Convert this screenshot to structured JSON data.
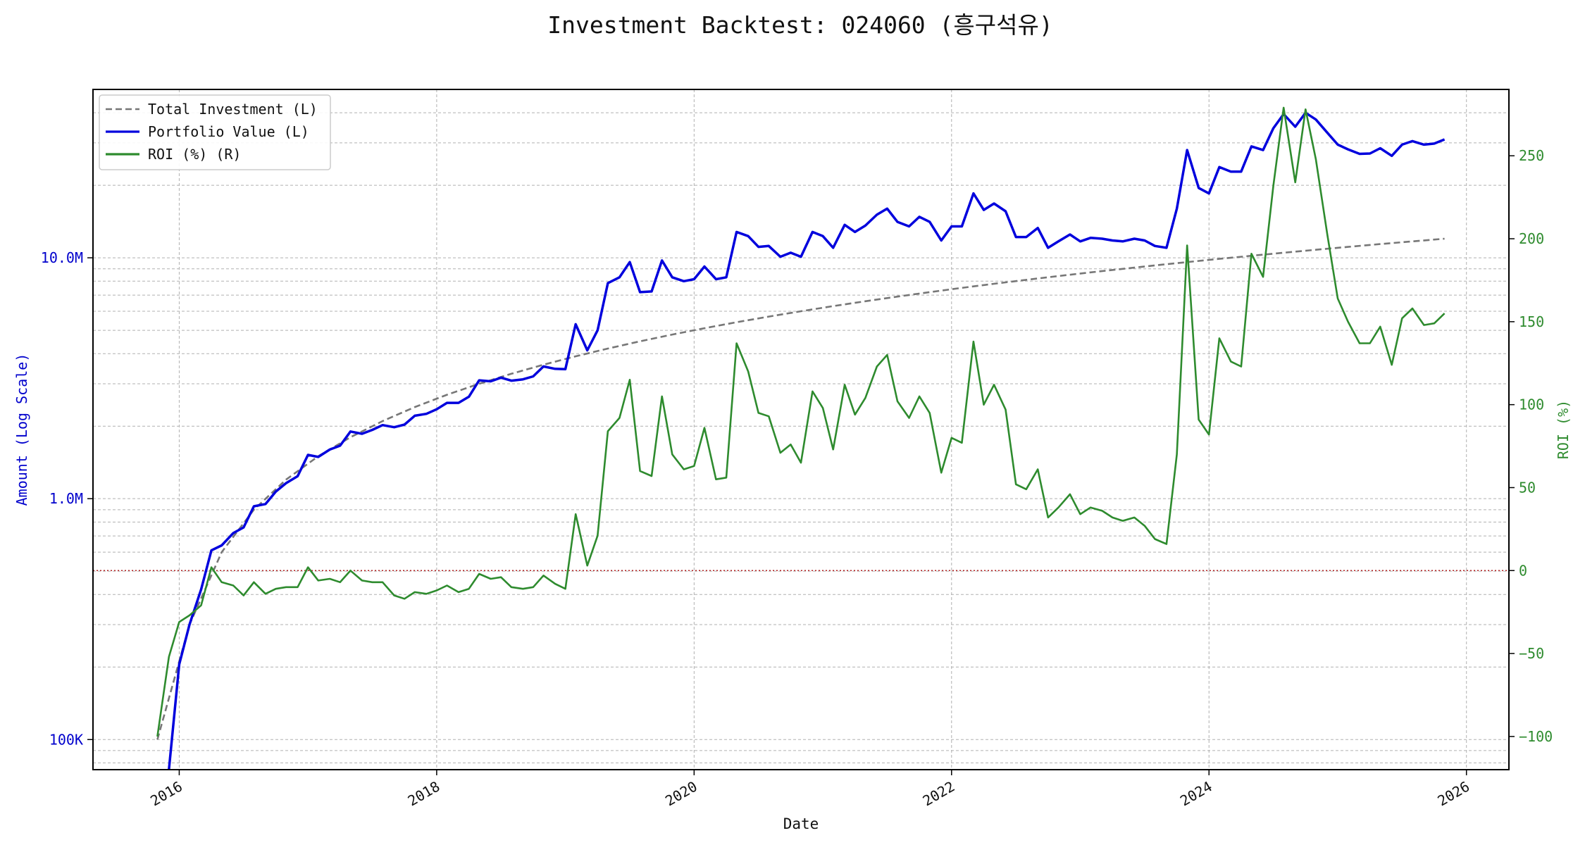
{
  "chart_data": {
    "type": "line",
    "title": "Investment Backtest: 024060 (흥구석유)",
    "xlabel": "Date",
    "ylabel_left": "Amount (Log Scale)",
    "ylabel_right": "ROI (%)",
    "x_ticks": [
      "2016",
      "2018",
      "2020",
      "2022",
      "2024",
      "2026"
    ],
    "x_range": [
      2015.33,
      2026.33
    ],
    "y_left_ticks": [
      {
        "value": 100000,
        "label": "100K"
      },
      {
        "value": 1000000,
        "label": "1.0M"
      },
      {
        "value": 10000000,
        "label": "10.0M"
      }
    ],
    "y_left_range": [
      75000,
      50000000
    ],
    "y_right_ticks": [
      -100,
      -50,
      0,
      50,
      100,
      150,
      200,
      250
    ],
    "y_right_range": [
      -120,
      290
    ],
    "grid": true,
    "legend_position": "top-left",
    "zero_line": {
      "axis": "right",
      "value": 0,
      "color": "#b22222"
    },
    "series": [
      {
        "name": "Total Investment (L)",
        "axis": "left",
        "style": "dashed",
        "color": "#777777",
        "x": [
          2015.83,
          2016.08,
          2016.33,
          2016.58,
          2016.83,
          2017.08,
          2017.33,
          2017.58,
          2017.83,
          2018.08,
          2018.33,
          2018.58,
          2018.83,
          2019.08,
          2019.33,
          2019.58,
          2019.83,
          2020.08,
          2020.33,
          2020.58,
          2020.83,
          2021.08,
          2021.33,
          2021.58,
          2021.83,
          2022.08,
          2022.33,
          2022.58,
          2022.83,
          2023.08,
          2023.33,
          2023.58,
          2023.83,
          2024.08,
          2024.33,
          2024.58,
          2024.83,
          2025.08,
          2025.33,
          2025.58,
          2025.83
        ],
        "values": [
          100000,
          300000,
          600000,
          900000,
          1200000,
          1500000,
          1800000,
          2100000,
          2400000,
          2700000,
          3000000,
          3300000,
          3600000,
          3900000,
          4200000,
          4500000,
          4800000,
          5100000,
          5400000,
          5700000,
          6000000,
          6300000,
          6600000,
          6900000,
          7200000,
          7500000,
          7800000,
          8100000,
          8400000,
          8700000,
          9000000,
          9300000,
          9600000,
          9900000,
          10200000,
          10500000,
          10800000,
          11100000,
          11400000,
          11700000,
          12000000
        ]
      },
      {
        "name": "Portfolio Value (L)",
        "axis": "left",
        "style": "solid",
        "color": "#0000dd",
        "x": [
          2015.92,
          2016.0,
          2016.08,
          2016.17,
          2016.25,
          2016.33,
          2016.42,
          2016.5,
          2016.58,
          2016.67,
          2016.75,
          2016.83,
          2016.92,
          2017.0,
          2017.08,
          2017.17,
          2017.25,
          2017.33,
          2017.42,
          2017.5,
          2017.58,
          2017.67,
          2017.75,
          2017.83,
          2017.92,
          2018.0,
          2018.08,
          2018.17,
          2018.25,
          2018.33,
          2018.42,
          2018.5,
          2018.58,
          2018.67,
          2018.75,
          2018.83,
          2018.92,
          2019.0,
          2019.08,
          2019.17,
          2019.25,
          2019.33,
          2019.42,
          2019.5,
          2019.58,
          2019.67,
          2019.75,
          2019.83,
          2019.92,
          2020.0,
          2020.08,
          2020.17,
          2020.25,
          2020.33,
          2020.42,
          2020.5,
          2020.58,
          2020.67,
          2020.75,
          2020.83,
          2020.92,
          2021.0,
          2021.08,
          2021.17,
          2021.25,
          2021.33,
          2021.42,
          2021.5,
          2021.58,
          2021.67,
          2021.75,
          2021.83,
          2021.92,
          2022.0,
          2022.08,
          2022.17,
          2022.25,
          2022.33,
          2022.42,
          2022.5,
          2022.58,
          2022.67,
          2022.75,
          2022.83,
          2022.92,
          2023.0,
          2023.08,
          2023.17,
          2023.25,
          2023.33,
          2023.42,
          2023.5,
          2023.58,
          2023.67,
          2023.75,
          2023.83,
          2023.92,
          2024.0,
          2024.08,
          2024.17,
          2024.25,
          2024.33,
          2024.42,
          2024.5,
          2024.58,
          2024.67,
          2024.75,
          2024.83,
          2024.92,
          2025.0,
          2025.08,
          2025.17,
          2025.25,
          2025.33,
          2025.42,
          2025.5,
          2025.58,
          2025.67,
          2025.75,
          2025.83
        ],
        "values": [
          75000,
          205000,
          300000,
          420000,
          610000,
          640000,
          720000,
          760000,
          930000,
          950000,
          1070000,
          1160000,
          1240000,
          1520000,
          1490000,
          1600000,
          1660000,
          1900000,
          1860000,
          1930000,
          2020000,
          1980000,
          2030000,
          2210000,
          2250000,
          2350000,
          2500000,
          2500000,
          2650000,
          3100000,
          3070000,
          3180000,
          3090000,
          3130000,
          3220000,
          3540000,
          3460000,
          3450000,
          5300000,
          4130000,
          5000000,
          7850000,
          8300000,
          9600000,
          7200000,
          7250000,
          9750000,
          8300000,
          8000000,
          8150000,
          9200000,
          8150000,
          8300000,
          12800000,
          12300000,
          11100000,
          11200000,
          10100000,
          10500000,
          10100000,
          12800000,
          12300000,
          11000000,
          13700000,
          12800000,
          13600000,
          15100000,
          16000000,
          14100000,
          13500000,
          14800000,
          14100000,
          11800000,
          13500000,
          13500000,
          18500000,
          15800000,
          16800000,
          15600000,
          12200000,
          12200000,
          13300000,
          11000000,
          11700000,
          12500000,
          11700000,
          12100000,
          12000000,
          11800000,
          11700000,
          12000000,
          11800000,
          11200000,
          11000000,
          16000000,
          28000000,
          19500000,
          18500000,
          23800000,
          22800000,
          22800000,
          29000000,
          28000000,
          34500000,
          39500000,
          35000000,
          40000000,
          37500000,
          33000000,
          29500000,
          28200000,
          27000000,
          27100000,
          28500000,
          26500000,
          29500000,
          30500000,
          29500000,
          29800000,
          31000000
        ]
      },
      {
        "name": "ROI (%) (R)",
        "axis": "right",
        "style": "solid",
        "color": "#2e8b2e",
        "x": [
          2015.83,
          2015.92,
          2016.0,
          2016.08,
          2016.17,
          2016.25,
          2016.33,
          2016.42,
          2016.5,
          2016.58,
          2016.67,
          2016.75,
          2016.83,
          2016.92,
          2017.0,
          2017.08,
          2017.17,
          2017.25,
          2017.33,
          2017.42,
          2017.5,
          2017.58,
          2017.67,
          2017.75,
          2017.83,
          2017.92,
          2018.0,
          2018.08,
          2018.17,
          2018.25,
          2018.33,
          2018.42,
          2018.5,
          2018.58,
          2018.67,
          2018.75,
          2018.83,
          2018.92,
          2019.0,
          2019.08,
          2019.17,
          2019.25,
          2019.33,
          2019.42,
          2019.5,
          2019.58,
          2019.67,
          2019.75,
          2019.83,
          2019.92,
          2020.0,
          2020.08,
          2020.17,
          2020.25,
          2020.33,
          2020.42,
          2020.5,
          2020.58,
          2020.67,
          2020.75,
          2020.83,
          2020.92,
          2021.0,
          2021.08,
          2021.17,
          2021.25,
          2021.33,
          2021.42,
          2021.5,
          2021.58,
          2021.67,
          2021.75,
          2021.83,
          2021.92,
          2022.0,
          2022.08,
          2022.17,
          2022.25,
          2022.33,
          2022.42,
          2022.5,
          2022.58,
          2022.67,
          2022.75,
          2022.83,
          2022.92,
          2023.0,
          2023.08,
          2023.17,
          2023.25,
          2023.33,
          2023.42,
          2023.5,
          2023.58,
          2023.67,
          2023.75,
          2023.83,
          2023.92,
          2024.0,
          2024.08,
          2024.17,
          2024.25,
          2024.33,
          2024.42,
          2024.5,
          2024.58,
          2024.67,
          2024.75,
          2024.83,
          2024.92,
          2025.0,
          2025.08,
          2025.17,
          2025.25,
          2025.33,
          2025.42,
          2025.5,
          2025.58,
          2025.67,
          2025.75,
          2025.83
        ],
        "values": [
          -100,
          -52,
          -31,
          -27,
          -21,
          2,
          -7,
          -9,
          -15,
          -7,
          -14,
          -11,
          -10,
          -10,
          2,
          -6,
          -5,
          -7,
          0,
          -6,
          -7,
          -7,
          -15,
          -17,
          -13,
          -14,
          -12,
          -9,
          -13,
          -11,
          -2,
          -5,
          -4,
          -10,
          -11,
          -10,
          -3,
          -8,
          -11,
          34,
          3,
          21,
          84,
          92,
          115,
          60,
          57,
          105,
          70,
          61,
          63,
          86,
          55,
          56,
          137,
          120,
          95,
          93,
          71,
          76,
          65,
          108,
          98,
          73,
          112,
          94,
          104,
          123,
          130,
          102,
          92,
          105,
          95,
          59,
          80,
          77,
          138,
          100,
          112,
          97,
          52,
          49,
          61,
          32,
          38,
          46,
          34,
          38,
          36,
          32,
          30,
          32,
          27,
          19,
          16,
          70,
          196,
          91,
          82,
          140,
          126,
          123,
          191,
          177,
          232,
          279,
          234,
          278,
          248,
          202,
          164,
          150,
          137,
          137,
          147,
          124,
          152,
          158,
          148,
          149,
          155
        ]
      }
    ]
  }
}
